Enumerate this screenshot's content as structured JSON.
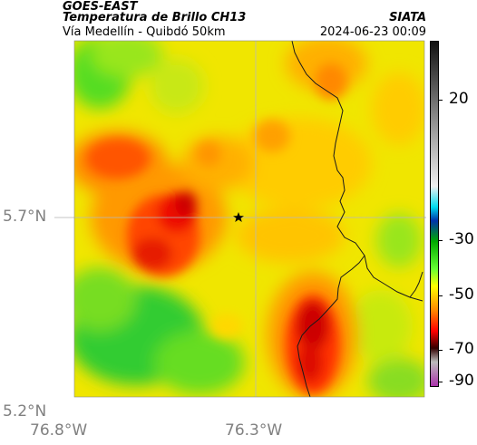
{
  "header": {
    "source": "GOES-EAST",
    "product": "Temperatura de Brillo CH13",
    "domain": "Vía Medellín - Quibdó 50km",
    "org": "SIATA",
    "datetime": "2024-06-23 00:09"
  },
  "map": {
    "lat_labels": [
      "5.7°N",
      "5.2°N"
    ],
    "lon_labels": [
      "76.8°W",
      "76.3°W"
    ],
    "marker": "star-marker"
  },
  "colorbar": {
    "ticks": [
      "20",
      "-30",
      "-50",
      "-70",
      "-90"
    ],
    "colors": {
      "warm_green": "#33cc33",
      "yellow": "#f2f200",
      "orange": "#ff9900",
      "red": "#dd1100",
      "dark": "#330000",
      "cyan": "#00ccdd",
      "purple": "#aa33aa"
    }
  }
}
